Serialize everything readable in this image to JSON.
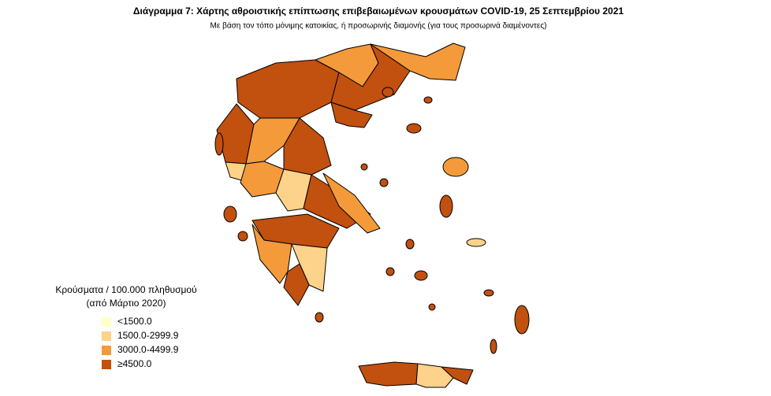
{
  "title": "Διάγραμμα 7: Χάρτης αθροιστικής επίπτωσης επιβεβαιωμένων κρουσμάτων COVID-19, 25 Σεπτεμβρίου 2021",
  "subtitle": "Με βάση τον τόπο μόνιμης κατοικίας, ή προσωρινής διαμονής (για τους προσωρινά διαμένοντες)",
  "legend": {
    "title": [
      "Κρούσματα / 100.000 πληθυσμού",
      "(από Μάρτιο 2020)"
    ],
    "items": [
      {
        "label": "<1500.0",
        "color": "#ffffc8"
      },
      {
        "label": "1500.0-2999.9",
        "color": "#fdd28a"
      },
      {
        "label": "3000.0-4499.9",
        "color": "#f49a3a"
      },
      {
        "label": "≥4500.0",
        "color": "#c2500f"
      }
    ]
  }
}
